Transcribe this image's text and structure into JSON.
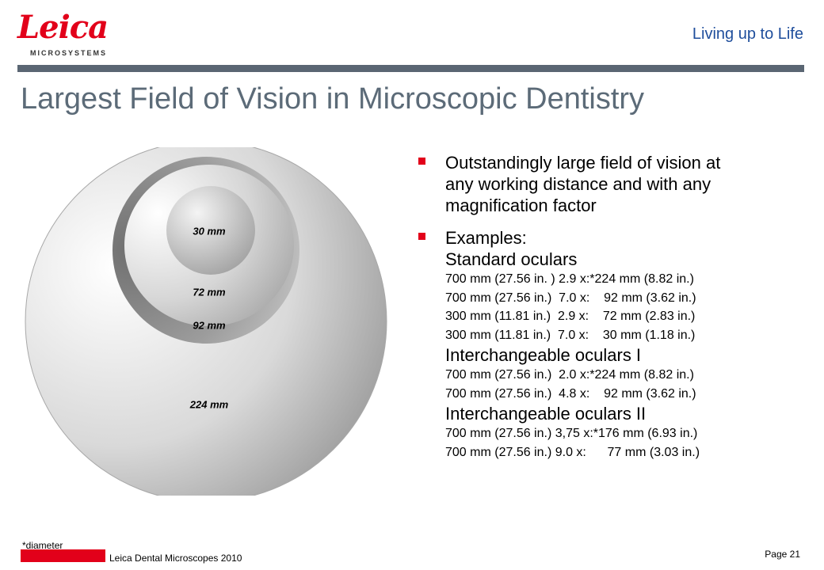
{
  "header": {
    "logo_word": "Leica",
    "logo_sub": "MICROSYSTEMS",
    "tagline": "Living up to Life"
  },
  "title": "Largest Field of Vision in Microscopic Dentistry",
  "diagram": {
    "labels": [
      "30 mm",
      "72 mm",
      "92 mm",
      "224 mm"
    ]
  },
  "bullets": {
    "first": {
      "line1": "Outstandingly large field of vision at",
      "line2": "any working distance and with any",
      "line3": "magnification factor"
    },
    "examples_heading": "Examples:",
    "groups": [
      {
        "heading": "Standard oculars",
        "rows": [
          "700 mm (27.56 in. ) 2.9 x:*224 mm (8.82 in.)",
          "700 mm (27.56 in.)  7.0 x:    92 mm (3.62 in.)",
          "300 mm (11.81 in.)  2.9 x:    72 mm (2.83 in.)",
          "300 mm (11.81 in.)  7.0 x:    30 mm (1.18 in.)"
        ]
      },
      {
        "heading": "Interchangeable oculars I",
        "rows": [
          "700 mm (27.56 in.)  2.0 x:*224 mm (8.82 in.)",
          "700 mm (27.56 in.)  4.8 x:    92 mm (3.62 in.)"
        ]
      },
      {
        "heading": "Interchangeable oculars II",
        "rows": [
          "700 mm (27.56 in.) 3,75 x:*176 mm (6.93 in.)",
          "700 mm (27.56 in.) 9.0 x:      77 mm (3.03 in.)"
        ]
      }
    ]
  },
  "footer": {
    "footnote": "*diameter",
    "text": "Leica Dental Microscopes 2010",
    "page": "Page 21"
  },
  "colors": {
    "brand_red": "#e2001a",
    "title_gray": "#5c6b78",
    "tagline_blue": "#1f4e9c",
    "bar_gray": "#5a6673"
  }
}
